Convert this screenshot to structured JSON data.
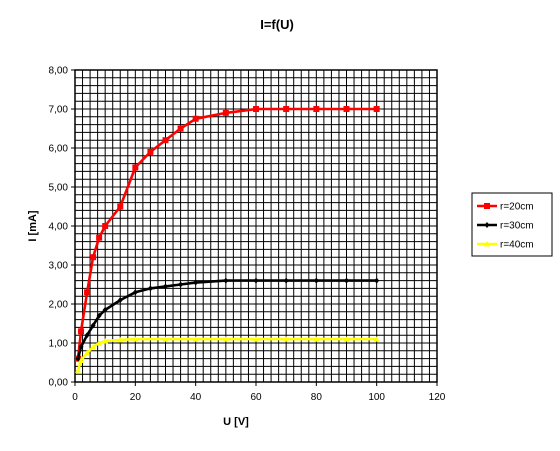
{
  "chart_data": {
    "type": "line",
    "title": "I=f(U)",
    "xlabel": "U [V]",
    "ylabel": "I [mA]",
    "xlim": [
      0,
      120
    ],
    "ylim": [
      0,
      8
    ],
    "xticks": [
      "0",
      "20",
      "40",
      "60",
      "80",
      "100",
      "120"
    ],
    "xtick_values": [
      0,
      20,
      40,
      60,
      80,
      100,
      120
    ],
    "yticks": [
      "0,00",
      "1,00",
      "2,00",
      "3,00",
      "4,00",
      "5,00",
      "6,00",
      "7,00",
      "8,00"
    ],
    "ytick_values": [
      0,
      1,
      2,
      3,
      4,
      5,
      6,
      7,
      8
    ],
    "grid": true,
    "legend_position": "right",
    "series": [
      {
        "name": "r=20cm",
        "color": "#ff0000",
        "marker": "square",
        "x": [
          1,
          2,
          4,
          6,
          8,
          10,
          15,
          20,
          25,
          30,
          35,
          40,
          50,
          60,
          70,
          80,
          90,
          100
        ],
        "y": [
          0.6,
          1.3,
          2.3,
          3.2,
          3.7,
          4.0,
          4.5,
          5.5,
          5.9,
          6.2,
          6.5,
          6.75,
          6.9,
          7.0,
          7.0,
          7.0,
          7.0,
          7.0
        ]
      },
      {
        "name": "r=30cm",
        "color": "#000000",
        "marker": "diamond",
        "x": [
          1,
          2,
          4,
          6,
          8,
          10,
          15,
          20,
          25,
          30,
          35,
          40,
          50,
          60,
          70,
          80,
          90,
          100
        ],
        "y": [
          0.6,
          0.9,
          1.2,
          1.45,
          1.7,
          1.85,
          2.1,
          2.3,
          2.4,
          2.45,
          2.5,
          2.55,
          2.6,
          2.6,
          2.6,
          2.6,
          2.6,
          2.6
        ]
      },
      {
        "name": "r=40cm",
        "color": "#ffff00",
        "marker": "triangle",
        "x": [
          1,
          2,
          4,
          6,
          8,
          10,
          15,
          20,
          30,
          40,
          50,
          60,
          70,
          80,
          90,
          100
        ],
        "y": [
          0.3,
          0.55,
          0.75,
          0.9,
          1.0,
          1.05,
          1.08,
          1.1,
          1.1,
          1.1,
          1.1,
          1.1,
          1.1,
          1.1,
          1.1,
          1.1
        ]
      }
    ]
  }
}
